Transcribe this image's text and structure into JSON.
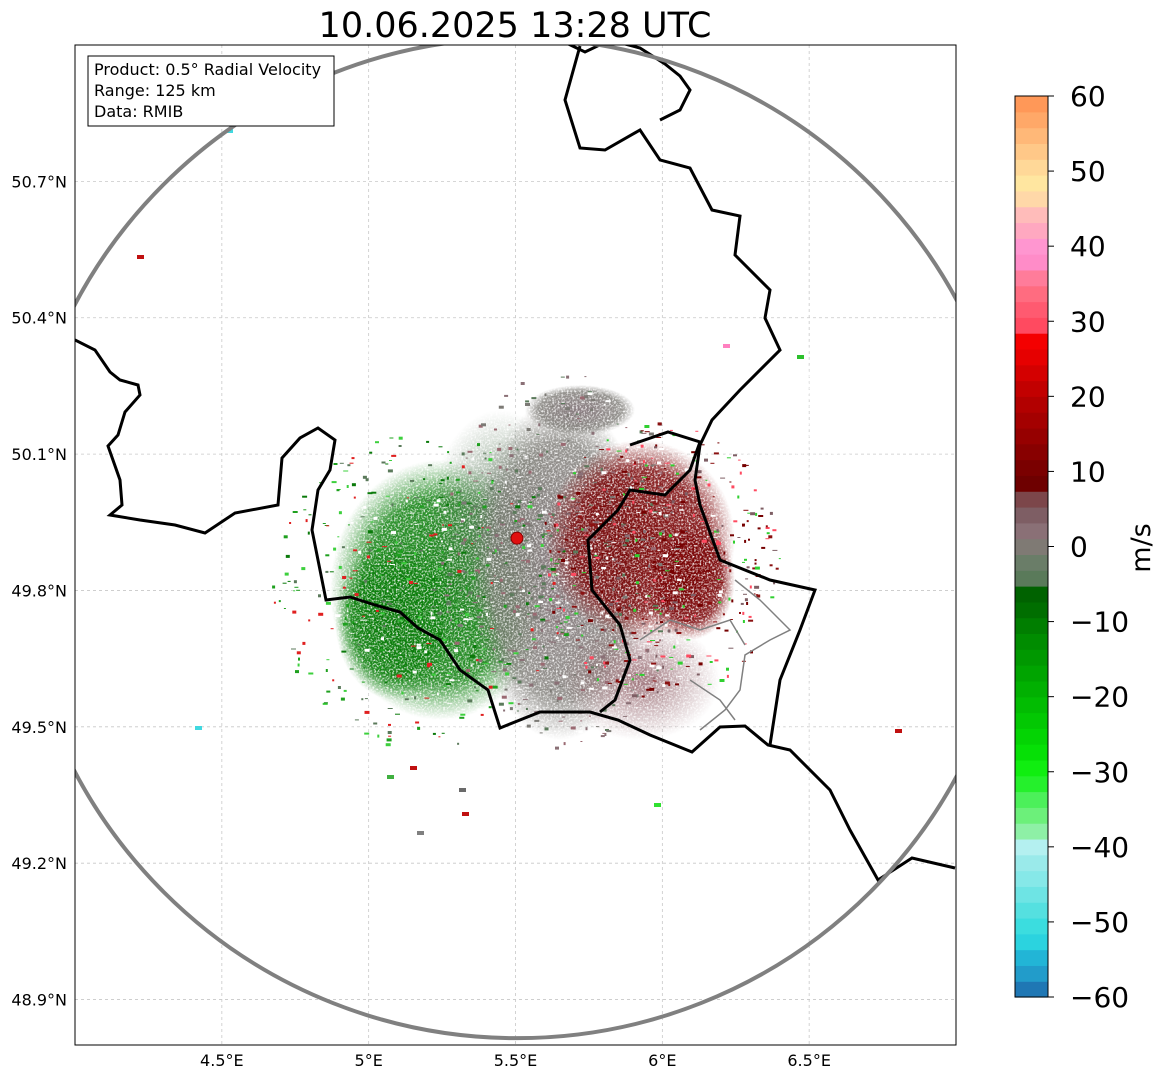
{
  "chart_data": {
    "type": "heatmap",
    "title": "10.06.2025 13:28 UTC",
    "info_box": [
      "Product: 0.5° Radial Velocity",
      "Range: 125 km",
      "Data: RMIB"
    ],
    "x_ticks": [
      {
        "value": 4.5,
        "label": "4.5°E"
      },
      {
        "value": 5.0,
        "label": "5°E"
      },
      {
        "value": 5.5,
        "label": "5.5°E"
      },
      {
        "value": 6.0,
        "label": "6°E"
      },
      {
        "value": 6.5,
        "label": "6.5°E"
      }
    ],
    "y_ticks": [
      {
        "value": 48.9,
        "label": "48.9°N"
      },
      {
        "value": 49.2,
        "label": "49.2°N"
      },
      {
        "value": 49.5,
        "label": "49.5°N"
      },
      {
        "value": 49.8,
        "label": "49.8°N"
      },
      {
        "value": 50.1,
        "label": "50.1°N"
      },
      {
        "value": 50.4,
        "label": "50.4°N"
      },
      {
        "value": 50.7,
        "label": "50.7°N"
      }
    ],
    "xlim": [
      4.0,
      7.0
    ],
    "ylim": [
      48.8,
      51.0
    ],
    "radar_site": {
      "lon": 5.505,
      "lat": 49.915
    },
    "range_km": 125,
    "colorbar": {
      "label": "m/s",
      "min": -60,
      "max": 60,
      "ticks": [
        -60,
        -50,
        -40,
        -30,
        -20,
        -10,
        0,
        10,
        20,
        30,
        40,
        50,
        60
      ],
      "tick_labels": [
        "−60",
        "−50",
        "−40",
        "−30",
        "−20",
        "−10",
        "0",
        "10",
        "20",
        "30",
        "40",
        "50",
        "60"
      ],
      "colors": [
        "#1f77b4",
        "#229cca",
        "#22b5d6",
        "#2bd3df",
        "#3bdddf",
        "#55e0e0",
        "#6ee4e4",
        "#86e8e8",
        "#9aeaea",
        "#b4f0f0",
        "#8ef0a6",
        "#6cf07a",
        "#4cf05a",
        "#25f02c",
        "#10ee10",
        "#06e006",
        "#04d404",
        "#03c803",
        "#02bc02",
        "#01b001",
        "#00a400",
        "#009800",
        "#008c00",
        "#007e00",
        "#006e00",
        "#006200",
        "#5a7a5a",
        "#6a7d68",
        "#7f7a74",
        "#8a7076",
        "#7e5e64",
        "#7c464a",
        "#6e0000",
        "#7a0000",
        "#880000",
        "#960000",
        "#a40000",
        "#b20000",
        "#c20000",
        "#d40000",
        "#e60000",
        "#f40000",
        "#ff4a60",
        "#ff5a70",
        "#ff6c80",
        "#ff7c9a",
        "#ff8cc8",
        "#ff96d0",
        "#ffa8c0",
        "#ffbcba",
        "#ffd8a8",
        "#ffe6a0",
        "#ffd898",
        "#ffc888",
        "#ffb878",
        "#ffa868",
        "#ff9858"
      ]
    },
    "velocity_regions": [
      {
        "name": "inbound-west",
        "approx_value": -12,
        "lon_range": [
          4.9,
          5.45
        ],
        "lat_range": [
          49.55,
          50.1
        ]
      },
      {
        "name": "near-zero-center",
        "approx_value": 0,
        "lon_range": [
          5.35,
          5.9
        ],
        "lat_range": [
          49.45,
          50.25
        ]
      },
      {
        "name": "outbound-east",
        "approx_value": 12,
        "lon_range": [
          5.6,
          6.25
        ],
        "lat_range": [
          49.65,
          50.1
        ]
      }
    ]
  }
}
